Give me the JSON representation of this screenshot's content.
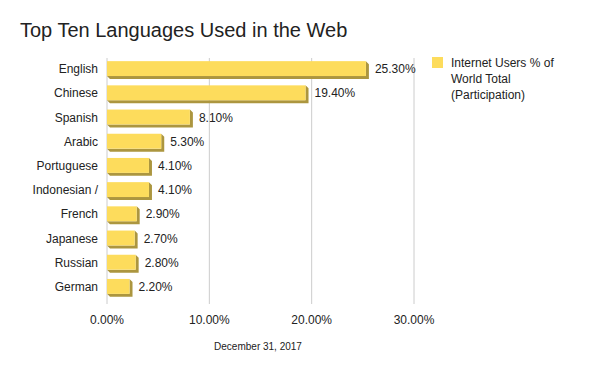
{
  "chart_data": {
    "type": "bar",
    "orientation": "horizontal",
    "title": "Top Ten Languages Used in the Web",
    "x_label": "December 31, 2017",
    "categories": [
      "English",
      "Chinese",
      "Spanish",
      "Arabic",
      "Portuguese",
      "Indonesian /",
      "French",
      "Japanese",
      "Russian",
      "German"
    ],
    "series": [
      {
        "name": "Internet Users % of World Total (Participation)",
        "color": "#fddc5c",
        "values": [
          25.3,
          19.4,
          8.1,
          5.3,
          4.1,
          4.1,
          2.9,
          2.7,
          2.8,
          2.2
        ],
        "value_labels": [
          "25.30%",
          "19.40%",
          "8.10%",
          "5.30%",
          "4.10%",
          "4.10%",
          "2.90%",
          "2.70%",
          "2.80%",
          "2.20%"
        ]
      }
    ],
    "xlim": [
      0,
      30
    ],
    "xticks": [
      {
        "value": 0,
        "label": "0.00%"
      },
      {
        "value": 10,
        "label": "10.00%"
      },
      {
        "value": 20,
        "label": "20.00%"
      },
      {
        "value": 30,
        "label": "30.00%"
      }
    ],
    "grid": true,
    "legend": "right",
    "data_labels": true
  }
}
